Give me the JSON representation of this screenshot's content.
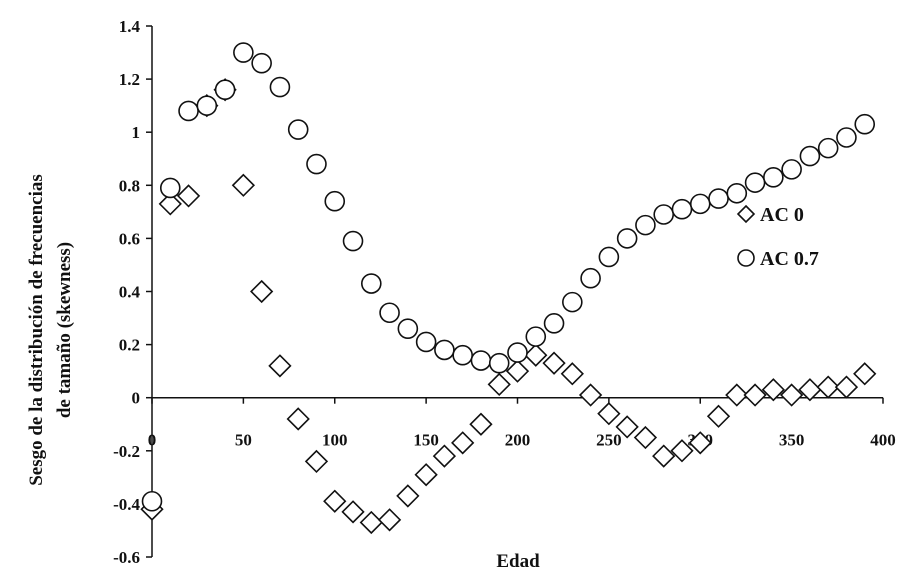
{
  "chart_data": {
    "type": "scatter",
    "title": "",
    "xlabel": "Edad",
    "ylabel_lines": [
      "Sesgo de la distribución de frecuencias",
      "de tamaño (skewness)"
    ],
    "xlim": [
      0,
      400
    ],
    "ylim": [
      -0.6,
      1.4
    ],
    "x_ticks": [
      0,
      50,
      100,
      150,
      200,
      250,
      300,
      350,
      400
    ],
    "y_ticks": [
      -0.6,
      -0.4,
      -0.2,
      0,
      0.2,
      0.4,
      0.6,
      0.8,
      1,
      1.2,
      1.4
    ],
    "y_tick_labels": [
      "-0.6",
      "-0.4",
      "-0.2",
      "0",
      "0.2",
      "0.4",
      "0.6",
      "0.8",
      "1",
      "1.2",
      "1.4"
    ],
    "grid": false,
    "legend_position": "right",
    "series": [
      {
        "name": "AC 0",
        "marker": "diamond",
        "x": [
          0,
          10,
          20,
          30,
          40,
          50,
          60,
          70,
          80,
          90,
          100,
          110,
          120,
          130,
          140,
          150,
          160,
          170,
          180,
          190,
          200,
          210,
          220,
          230,
          240,
          250,
          260,
          270,
          280,
          290,
          300,
          310,
          320,
          330,
          340,
          350,
          360,
          370,
          380,
          390
        ],
        "y": [
          -0.42,
          0.73,
          0.76,
          1.1,
          1.16,
          0.8,
          0.4,
          0.12,
          -0.08,
          -0.24,
          -0.39,
          -0.43,
          -0.47,
          -0.46,
          -0.37,
          -0.29,
          -0.22,
          -0.17,
          -0.1,
          0.05,
          0.1,
          0.16,
          0.13,
          0.09,
          0.01,
          -0.06,
          -0.11,
          -0.15,
          -0.22,
          -0.2,
          -0.17,
          -0.07,
          0.01,
          0.01,
          0.03,
          0.01,
          0.03,
          0.04,
          0.04,
          0.09
        ]
      },
      {
        "name": "AC 0.7",
        "marker": "circle",
        "x": [
          0,
          10,
          20,
          30,
          40,
          50,
          60,
          70,
          80,
          90,
          100,
          110,
          120,
          130,
          140,
          150,
          160,
          170,
          180,
          190,
          200,
          210,
          220,
          230,
          240,
          250,
          260,
          270,
          280,
          290,
          300,
          310,
          320,
          330,
          340,
          350,
          360,
          370,
          380,
          390
        ],
        "y": [
          -0.39,
          0.79,
          1.08,
          1.1,
          1.16,
          1.3,
          1.26,
          1.17,
          1.01,
          0.88,
          0.74,
          0.59,
          0.43,
          0.32,
          0.26,
          0.21,
          0.18,
          0.16,
          0.14,
          0.13,
          0.17,
          0.23,
          0.28,
          0.36,
          0.45,
          0.53,
          0.6,
          0.65,
          0.69,
          0.71,
          0.73,
          0.75,
          0.77,
          0.81,
          0.83,
          0.86,
          0.91,
          0.94,
          0.98,
          1.03
        ]
      }
    ]
  }
}
